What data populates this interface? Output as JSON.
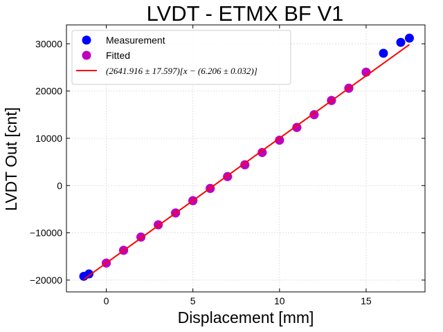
{
  "chart_data": {
    "type": "scatter",
    "title": "LVDT - ETMX BF V1",
    "xlabel": "Displacement [mm]",
    "ylabel": "LVDT Out [cnt]",
    "xlim": [
      -2.3,
      18.4
    ],
    "ylim": [
      -22500,
      34000
    ],
    "xticks": [
      0,
      5,
      10,
      15
    ],
    "yticks": [
      -20000,
      -10000,
      0,
      10000,
      20000,
      30000
    ],
    "xtick_labels": [
      "0",
      "5",
      "10",
      "15"
    ],
    "ytick_labels": [
      "−20000",
      "−10000",
      "0",
      "10000",
      "20000",
      "30000"
    ],
    "grid": true,
    "legend_position": "top-left",
    "series": [
      {
        "name": "Measurement",
        "kind": "scatter",
        "color": "#0000ff",
        "x": [
          -1.3,
          -1.0,
          0,
          1,
          2,
          3,
          4,
          5,
          6,
          7,
          8,
          9,
          10,
          11,
          12,
          13,
          14,
          15,
          16,
          17,
          17.5
        ],
        "y": [
          -19200,
          -18700,
          -16400,
          -13700,
          -10900,
          -8300,
          -5800,
          -3200,
          -600,
          1900,
          4400,
          7000,
          9600,
          12300,
          15000,
          18000,
          20600,
          24000,
          28000,
          30300,
          31200
        ]
      },
      {
        "name": "Fitted",
        "kind": "scatter",
        "color": "#bf00bf",
        "x": [
          0,
          1,
          2,
          3,
          4,
          5,
          6,
          7,
          8,
          9,
          10,
          11,
          12,
          13,
          14,
          15
        ],
        "y": [
          -16400,
          -13700,
          -10900,
          -8300,
          -5800,
          -3200,
          -600,
          1900,
          4400,
          7000,
          9600,
          12300,
          15000,
          18000,
          20600,
          24000
        ]
      },
      {
        "name": "(2641.916 ± 17.597)[x − (6.206 ± 0.032)]",
        "kind": "line",
        "color": "#ff0000",
        "x": [
          -1.3,
          17.5
        ],
        "y": [
          -19830,
          29840
        ]
      }
    ]
  }
}
